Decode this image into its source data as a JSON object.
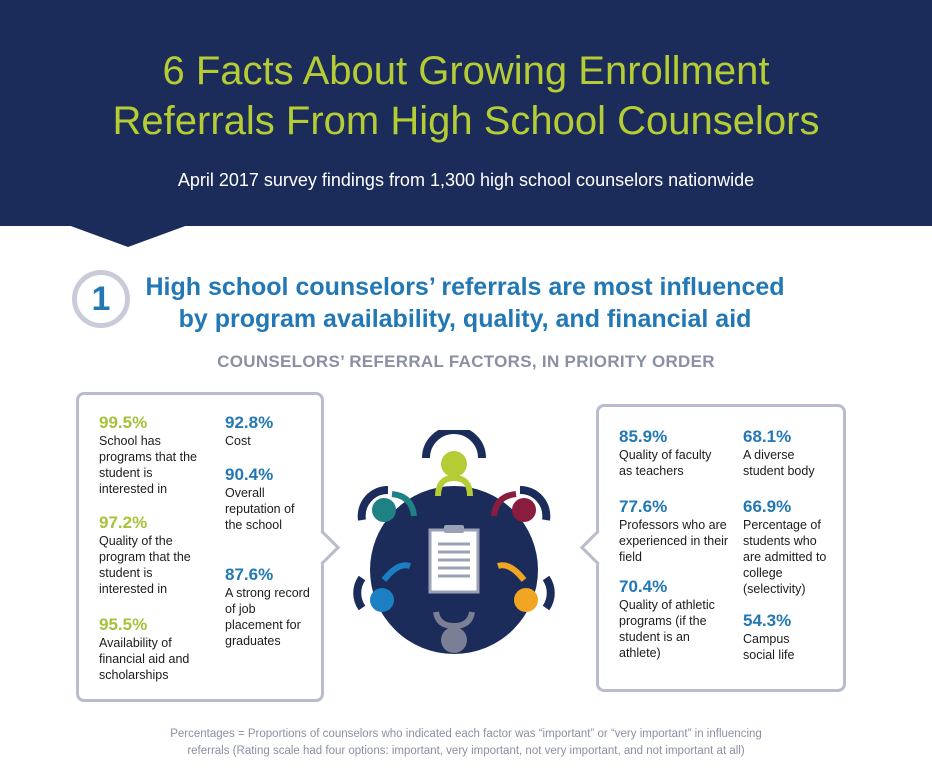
{
  "header": {
    "title_line1": "6 Facts About Growing Enrollment",
    "title_line2": "Referrals From High School Counselors",
    "subtitle": "April 2017 survey findings from 1,300 high school counselors nationwide"
  },
  "fact": {
    "number": "1",
    "heading_line1": "High school counselors’ referrals are most influenced",
    "heading_line2": "by program availability, quality, and financial aid"
  },
  "chart_title": "COUNSELORS’ REFERRAL FACTORS, IN PRIORITY ORDER",
  "left_factors": [
    {
      "pct": "99.5%",
      "desc": "School has programs that the student is interested in"
    },
    {
      "pct": "97.2%",
      "desc": "Quality of the program that the student is interested in"
    },
    {
      "pct": "95.5%",
      "desc": "Availability of financial aid and scholarships"
    },
    {
      "pct": "92.8%",
      "desc": "Cost"
    },
    {
      "pct": "90.4%",
      "desc": "Overall reputation of the school"
    },
    {
      "pct": "87.6%",
      "desc": "A strong record of job placement for graduates"
    }
  ],
  "right_factors": [
    {
      "pct": "85.9%",
      "desc": "Quality of faculty as teachers"
    },
    {
      "pct": "77.6%",
      "desc": "Professors who are experienced in their field"
    },
    {
      "pct": "70.4%",
      "desc": "Quality of athletic programs (if the student is an athlete)"
    },
    {
      "pct": "68.1%",
      "desc": "A diverse student body"
    },
    {
      "pct": "66.9%",
      "desc": "Percentage of students who are admitted to college (selectivity)"
    },
    {
      "pct": "54.3%",
      "desc": "Campus social life"
    }
  ],
  "footnote_line1": "Percentages = Proportions of counselors who indicated each factor was “important” or “very important” in influencing",
  "footnote_line2": "referrals (Rating scale had four options: important, very important, not very important, and not important at all)",
  "colors": {
    "navy": "#1b2c5a",
    "lime": "#b5cc34",
    "blue": "#2278b5",
    "gray": "#8a8fa3",
    "teal": "#1f8184",
    "maroon": "#8a1d3f",
    "orange": "#f0a623",
    "lightblue": "#1b7fc1",
    "slate": "#7a7f96"
  }
}
